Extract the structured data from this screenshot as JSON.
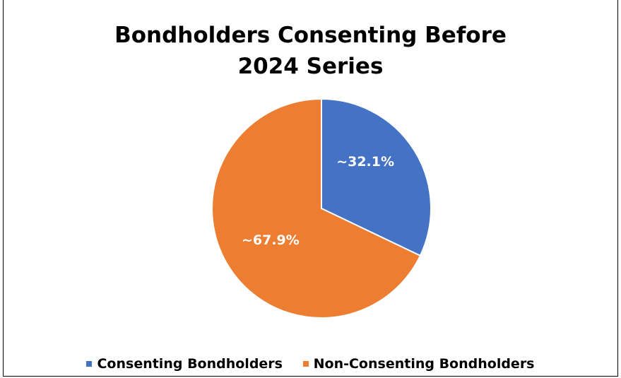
{
  "chart_data": {
    "type": "pie",
    "title_lines": [
      "Bondholders Consenting Before",
      "2024 Series"
    ],
    "slices": [
      {
        "name": "Consenting Bondholders",
        "value": 32.1,
        "label": "~32.1%",
        "color": "#4472C4"
      },
      {
        "name": "Non-Consenting Bondholders",
        "value": 67.9,
        "label": "~67.9%",
        "color": "#ED7D31"
      }
    ],
    "start_angle_deg": 0,
    "direction": "clockwise",
    "legend_position": "bottom",
    "label_color": "#FFFFFF",
    "slice_border_color": "#FFFFFF"
  }
}
